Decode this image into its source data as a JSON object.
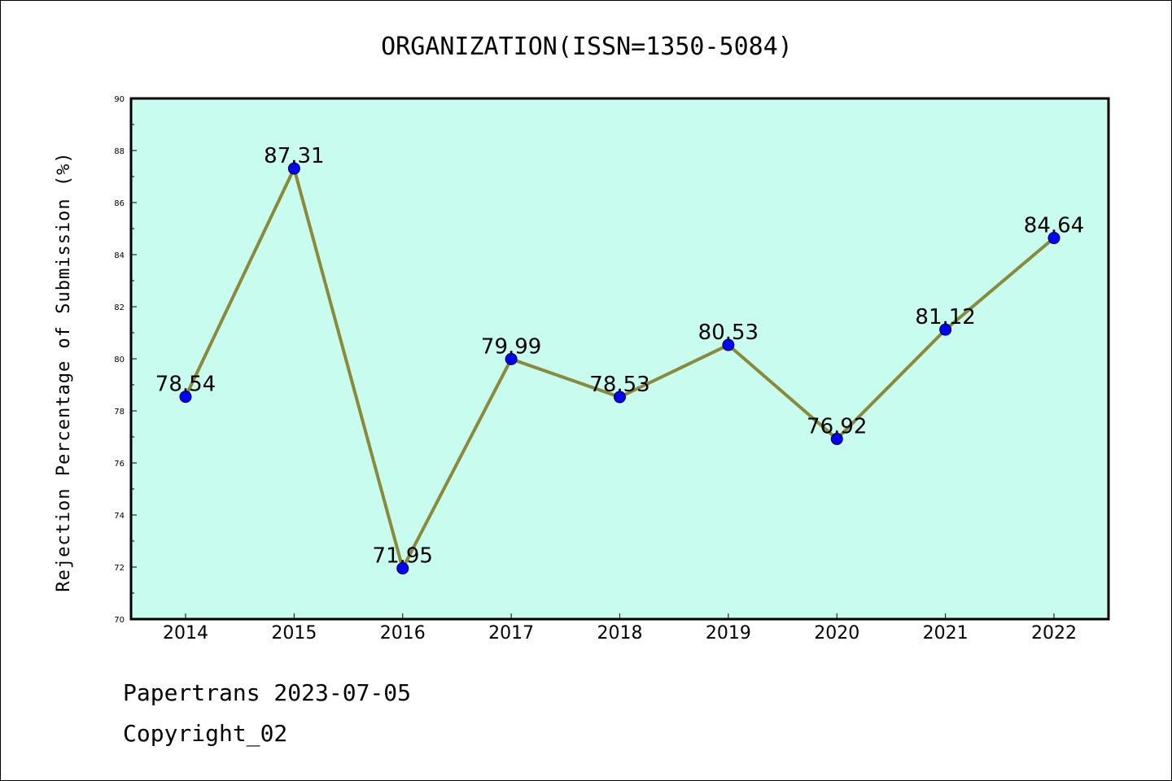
{
  "chart_data": {
    "type": "line",
    "title": "ORGANIZATION(ISSN=1350-5084)",
    "ylabel": "Rejection Percentage of Submission (%)",
    "xlabel": "",
    "categories": [
      "2014",
      "2015",
      "2016",
      "2017",
      "2018",
      "2019",
      "2020",
      "2021",
      "2022"
    ],
    "values": [
      78.54,
      87.31,
      71.95,
      79.99,
      78.53,
      80.53,
      76.92,
      81.12,
      84.64
    ],
    "data_labels": [
      "78.54",
      "87.31",
      "71.95",
      "79.99",
      "78.53",
      "80.53",
      "76.92",
      "81.12",
      "84.64"
    ],
    "ylim": [
      70,
      90
    ],
    "yticks": [
      "70",
      "72",
      "74",
      "76",
      "78",
      "80",
      "82",
      "84",
      "86",
      "88",
      "90"
    ],
    "grid": false,
    "legend": "none",
    "colors": {
      "plot_background": "#c8fcee",
      "line": "#8b8a3a",
      "marker": "#0000ff"
    }
  },
  "footer": {
    "line1": "Papertrans 2023-07-05",
    "line2": "Copyright_02"
  }
}
